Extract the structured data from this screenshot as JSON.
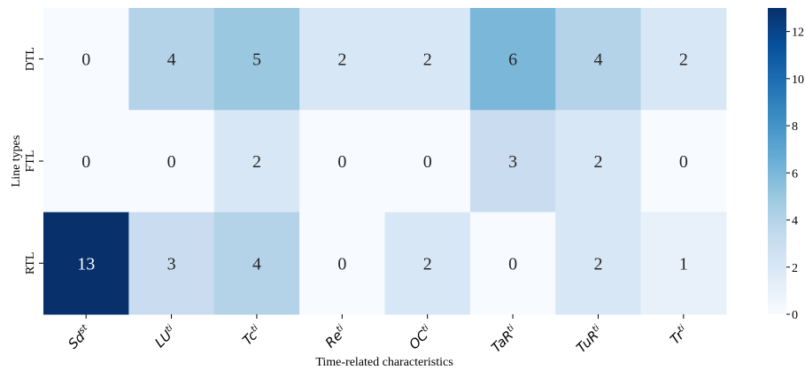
{
  "chart_data": {
    "type": "heatmap",
    "xlabel": "Time-related characteristics",
    "ylabel": "Line types",
    "columns": [
      {
        "base": "Sd",
        "sup": "st"
      },
      {
        "base": "LU",
        "sup": "ti"
      },
      {
        "base": "Tc",
        "sup": "ti"
      },
      {
        "base": "Re",
        "sup": "ti"
      },
      {
        "base": "OC",
        "sup": "ti"
      },
      {
        "base": "TaR",
        "sup": "ti"
      },
      {
        "base": "TuR",
        "sup": "ti"
      },
      {
        "base": "Tr",
        "sup": "ti"
      }
    ],
    "rows": [
      "DTL",
      "FTL",
      "RTL"
    ],
    "values": [
      [
        0,
        4,
        5,
        2,
        2,
        6,
        4,
        2
      ],
      [
        0,
        0,
        2,
        0,
        0,
        3,
        2,
        0
      ],
      [
        13,
        3,
        4,
        0,
        2,
        0,
        2,
        1
      ]
    ],
    "colormap": "Blues",
    "vmin": 0,
    "vmax": 13,
    "colorbar_ticks": [
      0,
      2,
      4,
      6,
      8,
      10,
      12
    ],
    "grid": false
  }
}
